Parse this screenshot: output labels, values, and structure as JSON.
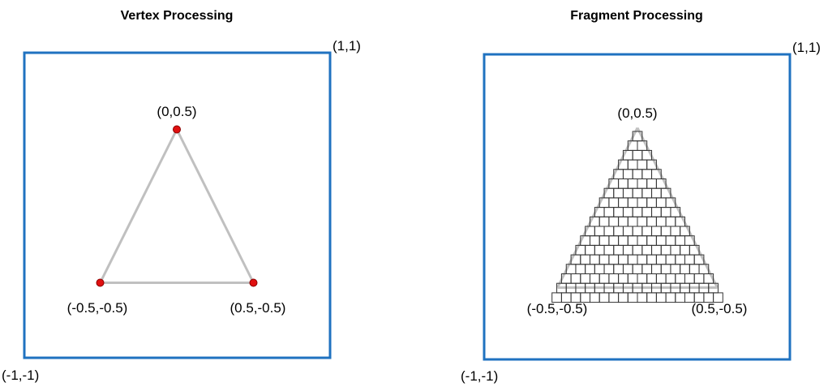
{
  "panels": [
    {
      "title": "Vertex Processing",
      "top_right_label": "(1,1)",
      "bottom_left_label": "(-1,-1)",
      "vertices": [
        {
          "x": 0,
          "y": 0.5,
          "label": "(0,0.5)"
        },
        {
          "x": -0.5,
          "y": -0.5,
          "label": "(-0.5,-0.5)"
        },
        {
          "x": 0.5,
          "y": -0.5,
          "label": "(0.5,-0.5)"
        }
      ]
    },
    {
      "title": "Fragment Processing",
      "top_right_label": "(1,1)",
      "bottom_left_label": "(-1,-1)",
      "vertices": [
        {
          "x": 0,
          "y": 0.5,
          "label": "(0,0.5)"
        },
        {
          "x": -0.5,
          "y": -0.5,
          "label": "(-0.5,-0.5)"
        },
        {
          "x": 0.5,
          "y": -0.5,
          "label": "(0.5,-0.5)"
        }
      ]
    }
  ],
  "colors": {
    "viewport_border": "#1f72c0",
    "triangle_edge": "#c0c0c0",
    "vertex_fill": "#e01010",
    "vertex_stroke": "#8b0000",
    "fragment_stroke": "#333333"
  },
  "fragment_rows": [
    {
      "cells": 1
    },
    {
      "cells": 2
    },
    {
      "cells": 3
    },
    {
      "cells": 4
    },
    {
      "cells": 5
    },
    {
      "cells": 6
    },
    {
      "cells": 7
    },
    {
      "cells": 8
    },
    {
      "cells": 9
    },
    {
      "cells": 10
    },
    {
      "cells": 11
    },
    {
      "cells": 12
    },
    {
      "cells": 13
    },
    {
      "cells": 14
    },
    {
      "cells": 15
    },
    {
      "cells": 16
    },
    {
      "cells": 17
    },
    {
      "cells": 18
    }
  ]
}
